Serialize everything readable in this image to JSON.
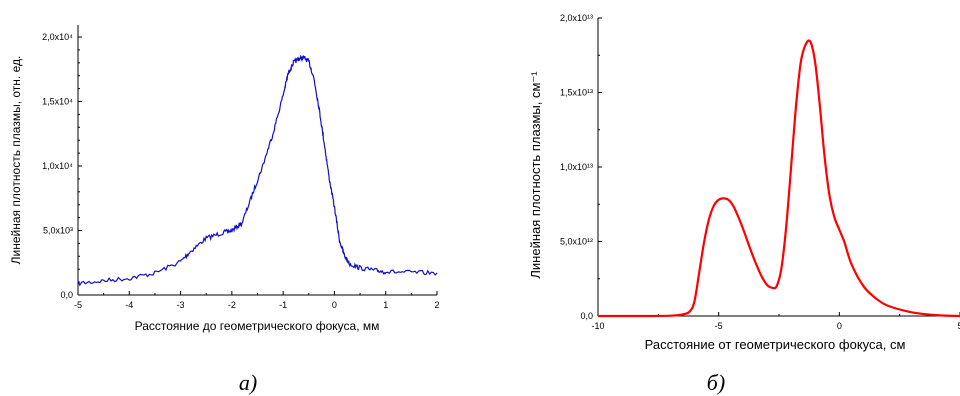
{
  "chart_data": [
    {
      "type": "line",
      "panel_label": "а)",
      "xlabel": "Расстояние до геометрического фокуса, мм",
      "ylabel": "Линейная плотность плазмы, отн. ед.",
      "xlim": [
        -5,
        2
      ],
      "ylim": [
        0,
        20000
      ],
      "x_ticks": [
        "-5",
        "-4",
        "-3",
        "-2",
        "-1",
        "0",
        "1",
        "2"
      ],
      "y_ticks": [
        "0,0",
        "5,0x10³",
        "1,0x10⁴",
        "1,5x10⁴",
        "2,0x10⁴"
      ],
      "color": "#1010c8",
      "series": [
        {
          "x": [
            -5,
            -4.5,
            -4,
            -3.5,
            -3,
            -2.8,
            -2.5,
            -2.2,
            -2,
            -1.8,
            -1.6,
            -1.4,
            -1.2,
            -1.0,
            -0.9,
            -0.8,
            -0.7,
            -0.6,
            -0.5,
            -0.4,
            -0.3,
            -0.2,
            -0.1,
            0,
            0.1,
            0.2,
            0.3,
            0.5,
            0.8,
            1.0,
            1.5,
            2.0
          ],
          "y": [
            900,
            1100,
            1300,
            1700,
            2600,
            3400,
            4400,
            4800,
            5000,
            5600,
            7800,
            10000,
            12500,
            15500,
            17200,
            18000,
            18300,
            18400,
            18100,
            16800,
            14500,
            11800,
            9000,
            6800,
            4200,
            3000,
            2400,
            2100,
            1900,
            1800,
            1750,
            1700
          ]
        }
      ]
    },
    {
      "type": "line",
      "panel_label": "б)",
      "xlabel": "Расстояние от геометрического фокуса, см",
      "ylabel": "Линейная плотность плазмы, см⁻¹",
      "xlim": [
        -10,
        5
      ],
      "ylim": [
        0,
        20000000000000.0
      ],
      "x_ticks": [
        "-10",
        "-5",
        "0",
        "5"
      ],
      "y_ticks": [
        "0,0",
        "5,0x10¹²",
        "1,0x10¹³",
        "1,5x10¹³",
        "2,0x10¹³"
      ],
      "color": "#ff0000",
      "series": [
        {
          "x": [
            -10,
            -8,
            -7,
            -6.5,
            -6.2,
            -6,
            -5.8,
            -5.6,
            -5.4,
            -5.2,
            -5,
            -4.8,
            -4.6,
            -4.4,
            -4.2,
            -4,
            -3.8,
            -3.6,
            -3.4,
            -3.2,
            -3,
            -2.8,
            -2.6,
            -2.4,
            -2.2,
            -2,
            -1.8,
            -1.6,
            -1.4,
            -1.2,
            -1.0,
            -0.8,
            -0.6,
            -0.4,
            -0.2,
            0,
            0.2,
            0.5,
            1.0,
            1.5,
            2.0,
            3.0,
            4.0,
            5.0
          ],
          "y": [
            0,
            0,
            20000000000.0,
            100000000000.0,
            300000000000.0,
            1000000000000.0,
            3000000000000.0,
            5000000000000.0,
            6500000000000.0,
            7400000000000.0,
            7800000000000.0,
            7900000000000.0,
            7800000000000.0,
            7400000000000.0,
            6700000000000.0,
            5900000000000.0,
            5000000000000.0,
            4100000000000.0,
            3300000000000.0,
            2600000000000.0,
            2100000000000.0,
            1900000000000.0,
            2000000000000.0,
            3200000000000.0,
            6000000000000.0,
            10000000000000.0,
            14000000000000.0,
            17000000000000.0,
            18200000000000.0,
            18400000000000.0,
            17000000000000.0,
            14000000000000.0,
            10500000000000.0,
            8000000000000.0,
            6600000000000.0,
            5800000000000.0,
            5000000000000.0,
            3500000000000.0,
            2000000000000.0,
            1200000000000.0,
            700000000000.0,
            250000000000.0,
            60000000000.0,
            0
          ]
        }
      ]
    }
  ]
}
